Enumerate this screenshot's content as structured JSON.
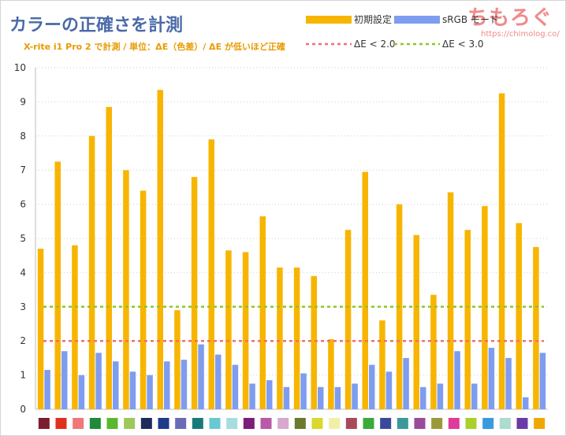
{
  "title": "カラーの正確さを計測",
  "subtitle": "X-rite i1 Pro 2 で計測 / 単位：ΔE（色差）/ ΔE が低いほど正確",
  "brand": {
    "name": "ちもろぐ",
    "url": "https://chimolog.co/"
  },
  "chart_data": {
    "type": "bar",
    "ylim": [
      0,
      10
    ],
    "yticks": [
      0,
      1,
      2,
      3,
      4,
      5,
      6,
      7,
      8,
      9,
      10
    ],
    "grid": "horizontal dotted",
    "legend_position": "top-right",
    "categories": [
      "#7b1f2e",
      "#e0301e",
      "#f07878",
      "#1e8a3a",
      "#5ab82e",
      "#9ec85a",
      "#1e2a5a",
      "#1e3a8a",
      "#6a6ab8",
      "#1a7a7a",
      "#6ac8d0",
      "#a8dce0",
      "#7a1e7a",
      "#b85aa8",
      "#d8a8d0",
      "#6a7a2e",
      "#d8d82e",
      "#f0f0a8",
      "#a84a5a",
      "#3aaa3a",
      "#3a4a9a",
      "#3a9a9a",
      "#9a4a9a",
      "#9a9a3a",
      "#e03a9a",
      "#aad02e",
      "#3a9ae0",
      "#aadcd0",
      "#6a3aa8",
      "#f0a800"
    ],
    "series": [
      {
        "name": "初期設定",
        "color": "#f7b500",
        "values": [
          4.7,
          7.25,
          4.8,
          8.0,
          8.85,
          7.0,
          6.4,
          9.35,
          2.9,
          6.8,
          7.9,
          4.65,
          4.6,
          5.65,
          4.15,
          4.15,
          3.9,
          2.05,
          5.25,
          6.95,
          2.6,
          6.0,
          5.1,
          3.35,
          6.35,
          5.25,
          5.95,
          9.25,
          5.45,
          4.75
        ]
      },
      {
        "name": "sRGB モード",
        "color": "#7e9df0",
        "values": [
          1.15,
          1.7,
          1.0,
          1.65,
          1.4,
          1.1,
          1.0,
          1.4,
          1.45,
          1.9,
          1.6,
          1.3,
          0.75,
          0.85,
          0.65,
          1.05,
          0.65,
          0.65,
          0.75,
          1.3,
          1.1,
          1.5,
          0.65,
          0.75,
          1.7,
          0.75,
          1.8,
          1.5,
          0.35,
          1.65
        ]
      }
    ],
    "reference_lines": [
      {
        "name": "ΔE < 2.0",
        "value": 2.0,
        "color": "#f07070"
      },
      {
        "name": "ΔE < 3.0",
        "value": 3.0,
        "color": "#8cc820"
      }
    ]
  }
}
